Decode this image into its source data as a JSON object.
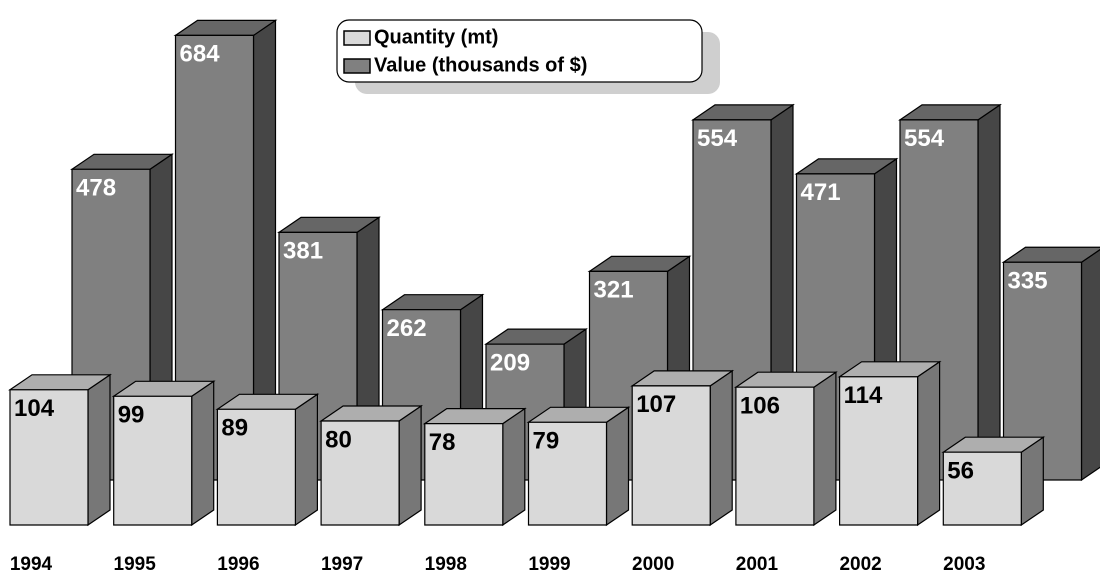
{
  "chart_data": {
    "type": "bar3d",
    "categories": [
      "1994",
      "1995",
      "1996",
      "1997",
      "1998",
      "1999",
      "2000",
      "2001",
      "2002",
      "2003"
    ],
    "series": [
      {
        "name": "Quantity (mt)",
        "color": "#d9d9d9",
        "axis": "y2",
        "values": [
          104,
          99,
          89,
          80,
          78,
          79,
          107,
          106,
          114,
          56
        ]
      },
      {
        "name": "Value (thousands of $)",
        "color": "#808080",
        "values": [
          478,
          684,
          381,
          262,
          209,
          321,
          554,
          471,
          554,
          335
        ]
      }
    ],
    "ylim": [
      0,
      700
    ],
    "y2lim": [
      0,
      350
    ]
  }
}
